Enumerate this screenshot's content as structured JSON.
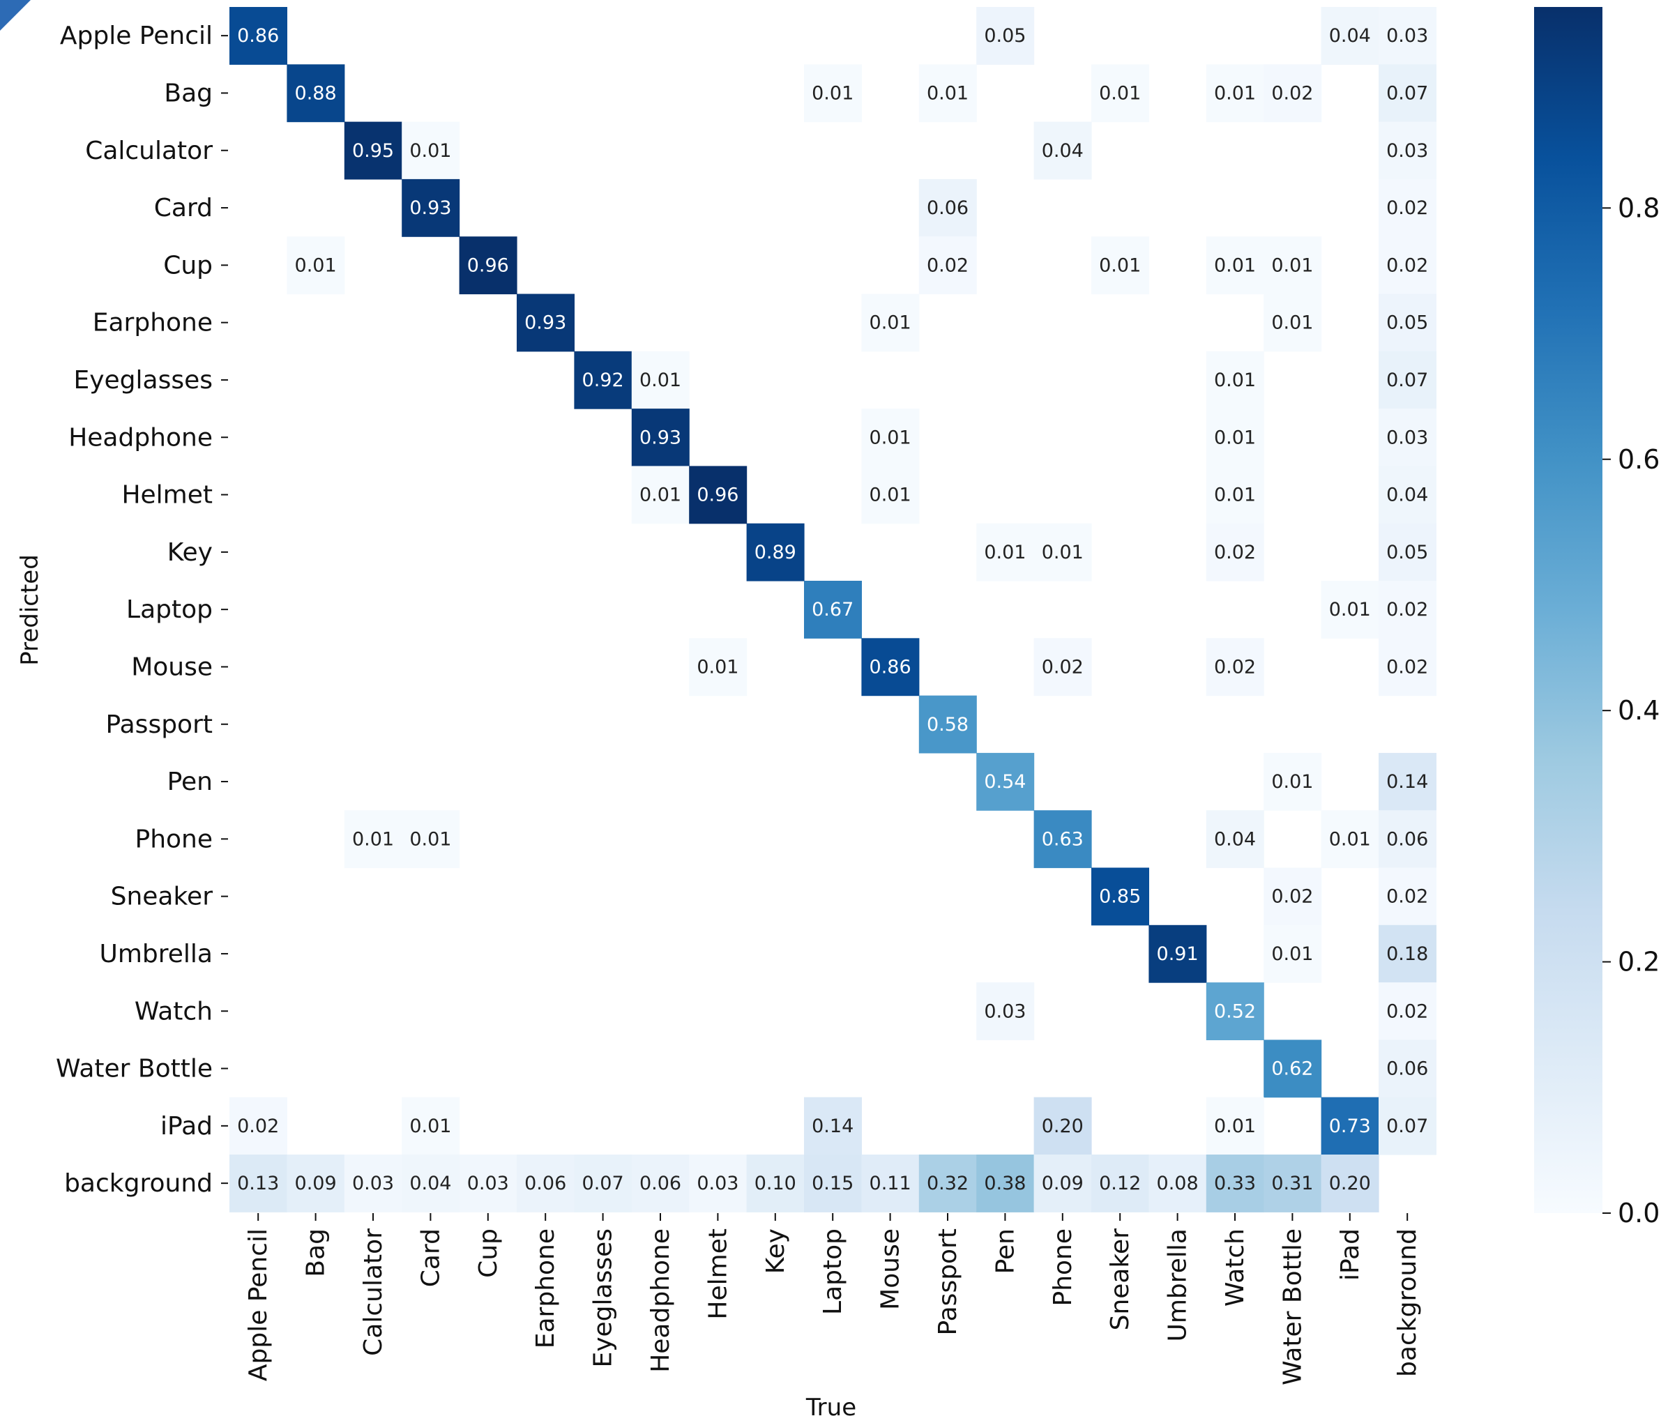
{
  "chart_data": {
    "type": "heatmap",
    "title": "",
    "xlabel": "True",
    "ylabel": "Predicted",
    "row_labels": [
      "Apple Pencil",
      "Bag",
      "Calculator",
      "Card",
      "Cup",
      "Earphone",
      "Eyeglasses",
      "Headphone",
      "Helmet",
      "Key",
      "Laptop",
      "Mouse",
      "Passport",
      "Pen",
      "Phone",
      "Sneaker",
      "Umbrella",
      "Watch",
      "Water Bottle",
      "iPad",
      "background"
    ],
    "col_labels": [
      "Apple Pencil",
      "Bag",
      "Calculator",
      "Card",
      "Cup",
      "Earphone",
      "Eyeglasses",
      "Headphone",
      "Helmet",
      "Key",
      "Laptop",
      "Mouse",
      "Passport",
      "Pen",
      "Phone",
      "Sneaker",
      "Umbrella",
      "Watch",
      "Water Bottle",
      "iPad",
      "background"
    ],
    "cells": [
      [
        0,
        0,
        "0.86"
      ],
      [
        0,
        13,
        "0.05"
      ],
      [
        0,
        19,
        "0.04"
      ],
      [
        0,
        20,
        "0.03"
      ],
      [
        1,
        1,
        "0.88"
      ],
      [
        1,
        10,
        "0.01"
      ],
      [
        1,
        12,
        "0.01"
      ],
      [
        1,
        15,
        "0.01"
      ],
      [
        1,
        17,
        "0.01"
      ],
      [
        1,
        18,
        "0.02"
      ],
      [
        1,
        20,
        "0.07"
      ],
      [
        2,
        2,
        "0.95"
      ],
      [
        2,
        3,
        "0.01"
      ],
      [
        2,
        14,
        "0.04"
      ],
      [
        2,
        20,
        "0.03"
      ],
      [
        3,
        3,
        "0.93"
      ],
      [
        3,
        12,
        "0.06"
      ],
      [
        3,
        20,
        "0.02"
      ],
      [
        4,
        1,
        "0.01"
      ],
      [
        4,
        4,
        "0.96"
      ],
      [
        4,
        12,
        "0.02"
      ],
      [
        4,
        15,
        "0.01"
      ],
      [
        4,
        17,
        "0.01"
      ],
      [
        4,
        18,
        "0.01"
      ],
      [
        4,
        20,
        "0.02"
      ],
      [
        5,
        5,
        "0.93"
      ],
      [
        5,
        11,
        "0.01"
      ],
      [
        5,
        18,
        "0.01"
      ],
      [
        5,
        20,
        "0.05"
      ],
      [
        6,
        6,
        "0.92"
      ],
      [
        6,
        7,
        "0.01"
      ],
      [
        6,
        17,
        "0.01"
      ],
      [
        6,
        20,
        "0.07"
      ],
      [
        7,
        7,
        "0.93"
      ],
      [
        7,
        11,
        "0.01"
      ],
      [
        7,
        17,
        "0.01"
      ],
      [
        7,
        20,
        "0.03"
      ],
      [
        8,
        7,
        "0.01"
      ],
      [
        8,
        8,
        "0.96"
      ],
      [
        8,
        11,
        "0.01"
      ],
      [
        8,
        17,
        "0.01"
      ],
      [
        8,
        20,
        "0.04"
      ],
      [
        9,
        9,
        "0.89"
      ],
      [
        9,
        13,
        "0.01"
      ],
      [
        9,
        14,
        "0.01"
      ],
      [
        9,
        17,
        "0.02"
      ],
      [
        9,
        20,
        "0.05"
      ],
      [
        10,
        10,
        "0.67"
      ],
      [
        10,
        19,
        "0.01"
      ],
      [
        10,
        20,
        "0.02"
      ],
      [
        11,
        8,
        "0.01"
      ],
      [
        11,
        11,
        "0.86"
      ],
      [
        11,
        14,
        "0.02"
      ],
      [
        11,
        17,
        "0.02"
      ],
      [
        11,
        20,
        "0.02"
      ],
      [
        12,
        12,
        "0.58"
      ],
      [
        13,
        13,
        "0.54"
      ],
      [
        13,
        18,
        "0.01"
      ],
      [
        13,
        20,
        "0.14"
      ],
      [
        14,
        2,
        "0.01"
      ],
      [
        14,
        3,
        "0.01"
      ],
      [
        14,
        14,
        "0.63"
      ],
      [
        14,
        17,
        "0.04"
      ],
      [
        14,
        19,
        "0.01"
      ],
      [
        14,
        20,
        "0.06"
      ],
      [
        15,
        15,
        "0.85"
      ],
      [
        15,
        18,
        "0.02"
      ],
      [
        15,
        20,
        "0.02"
      ],
      [
        16,
        16,
        "0.91"
      ],
      [
        16,
        18,
        "0.01"
      ],
      [
        16,
        20,
        "0.18"
      ],
      [
        17,
        13,
        "0.03"
      ],
      [
        17,
        17,
        "0.52"
      ],
      [
        17,
        20,
        "0.02"
      ],
      [
        18,
        18,
        "0.62"
      ],
      [
        18,
        20,
        "0.06"
      ],
      [
        19,
        0,
        "0.02"
      ],
      [
        19,
        3,
        "0.01"
      ],
      [
        19,
        10,
        "0.14"
      ],
      [
        19,
        14,
        "0.20"
      ],
      [
        19,
        17,
        "0.01"
      ],
      [
        19,
        19,
        "0.73"
      ],
      [
        19,
        20,
        "0.07"
      ],
      [
        20,
        0,
        "0.13"
      ],
      [
        20,
        1,
        "0.09"
      ],
      [
        20,
        2,
        "0.03"
      ],
      [
        20,
        3,
        "0.04"
      ],
      [
        20,
        4,
        "0.03"
      ],
      [
        20,
        5,
        "0.06"
      ],
      [
        20,
        6,
        "0.07"
      ],
      [
        20,
        7,
        "0.06"
      ],
      [
        20,
        8,
        "0.03"
      ],
      [
        20,
        9,
        "0.10"
      ],
      [
        20,
        10,
        "0.15"
      ],
      [
        20,
        11,
        "0.11"
      ],
      [
        20,
        12,
        "0.32"
      ],
      [
        20,
        13,
        "0.38"
      ],
      [
        20,
        14,
        "0.09"
      ],
      [
        20,
        15,
        "0.12"
      ],
      [
        20,
        16,
        "0.08"
      ],
      [
        20,
        17,
        "0.33"
      ],
      [
        20,
        18,
        "0.31"
      ],
      [
        20,
        19,
        "0.20"
      ]
    ],
    "colorbar": {
      "min": 0.0,
      "max": 0.96,
      "ticks": [
        "0.0",
        "0.2",
        "0.4",
        "0.6",
        "0.8"
      ],
      "tick_values": [
        0.0,
        0.2,
        0.4,
        0.6,
        0.8
      ],
      "colormap": "Blues",
      "colors": [
        "#f7fbff",
        "#deebf7",
        "#c6dbef",
        "#9ecae1",
        "#6baed6",
        "#4292c6",
        "#2171b5",
        "#08519c",
        "#08306b"
      ]
    },
    "grid": false,
    "legend": "colorbar-right"
  }
}
